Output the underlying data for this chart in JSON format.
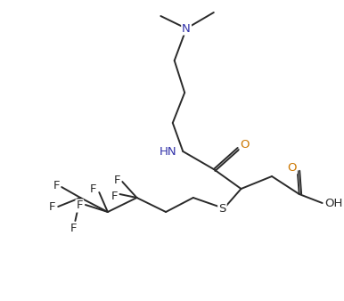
{
  "bg_color": "#ffffff",
  "line_color": "#2a2a2a",
  "figsize": [
    3.86,
    3.38
  ],
  "dpi": 100,
  "xlim": [
    0,
    386
  ],
  "ylim": [
    0,
    338
  ],
  "lw": 1.4,
  "fs": 9.5,
  "N_color": "#3333aa",
  "O_color": "#cc7700",
  "text_color": "#2a2a2a"
}
